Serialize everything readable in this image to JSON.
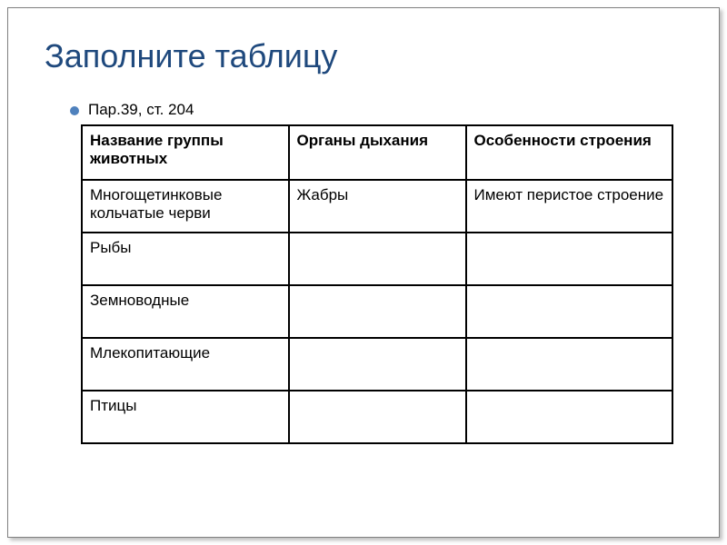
{
  "title": "Заполните таблицу",
  "subtitle": "Пар.39, ст. 204",
  "table": {
    "columns": [
      "Название группы животных",
      "Органы дыхания",
      "Особенности строения"
    ],
    "rows": [
      [
        "Многощетинковые кольчатые черви",
        "Жабры",
        "Имеют перистое строение"
      ],
      [
        "Рыбы",
        "",
        ""
      ],
      [
        "Земноводные",
        "",
        ""
      ],
      [
        "Млекопитающие",
        "",
        ""
      ],
      [
        "Птицы",
        "",
        ""
      ]
    ]
  },
  "colors": {
    "title": "#1f497d",
    "bullet": "#4f81bd",
    "border": "#808080",
    "table_border": "#000000",
    "text": "#000000",
    "background": "#ffffff"
  },
  "fonts": {
    "title_size": 36,
    "subtitle_size": 17,
    "cell_size": 17
  }
}
